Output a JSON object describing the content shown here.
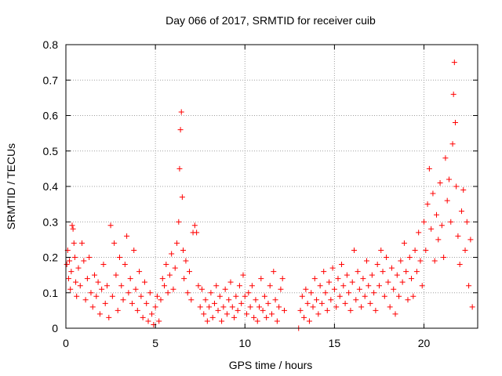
{
  "chart_data": {
    "type": "scatter",
    "title": "Day 066 of 2017, SRMTID for receiver cuib",
    "xlabel": "GPS time / hours",
    "ylabel": "SRMTID / TECUs",
    "xlim": [
      0,
      23
    ],
    "ylim": [
      0,
      0.8
    ],
    "xticks": [
      0,
      5,
      10,
      15,
      20
    ],
    "yticks": [
      0,
      0.1,
      0.2,
      0.3,
      0.4,
      0.5,
      0.6,
      0.7,
      0.8
    ],
    "xtick_labels": [
      "0",
      "5",
      "10",
      "15",
      "20"
    ],
    "ytick_labels": [
      "0",
      "0.1",
      "0.2",
      "0.3",
      "0.4",
      "0.5",
      "0.6",
      "0.7",
      "0.8"
    ],
    "grid": true,
    "marker": "+",
    "color": "#ff0000",
    "series": [
      {
        "name": "SRMTID",
        "points": [
          [
            0.05,
            0.18
          ],
          [
            0.1,
            0.22
          ],
          [
            0.15,
            0.14
          ],
          [
            0.2,
            0.19
          ],
          [
            0.25,
            0.11
          ],
          [
            0.3,
            0.16
          ],
          [
            0.35,
            0.29
          ],
          [
            0.4,
            0.28
          ],
          [
            0.45,
            0.24
          ],
          [
            0.5,
            0.2
          ],
          [
            0.55,
            0.13
          ],
          [
            0.6,
            0.09
          ],
          [
            0.7,
            0.17
          ],
          [
            0.8,
            0.12
          ],
          [
            0.9,
            0.24
          ],
          [
            1.0,
            0.19
          ],
          [
            1.1,
            0.08
          ],
          [
            1.2,
            0.14
          ],
          [
            1.3,
            0.2
          ],
          [
            1.4,
            0.1
          ],
          [
            1.5,
            0.06
          ],
          [
            1.6,
            0.15
          ],
          [
            1.7,
            0.09
          ],
          [
            1.8,
            0.13
          ],
          [
            1.9,
            0.04
          ],
          [
            2.0,
            0.11
          ],
          [
            2.1,
            0.18
          ],
          [
            2.2,
            0.07
          ],
          [
            2.3,
            0.12
          ],
          [
            2.4,
            0.03
          ],
          [
            2.5,
            0.29
          ],
          [
            2.6,
            0.09
          ],
          [
            2.7,
            0.24
          ],
          [
            2.8,
            0.15
          ],
          [
            2.9,
            0.05
          ],
          [
            3.0,
            0.2
          ],
          [
            3.1,
            0.12
          ],
          [
            3.2,
            0.08
          ],
          [
            3.3,
            0.18
          ],
          [
            3.4,
            0.26
          ],
          [
            3.5,
            0.1
          ],
          [
            3.6,
            0.14
          ],
          [
            3.7,
            0.07
          ],
          [
            3.8,
            0.22
          ],
          [
            3.9,
            0.11
          ],
          [
            4.0,
            0.05
          ],
          [
            4.1,
            0.16
          ],
          [
            4.2,
            0.09
          ],
          [
            4.3,
            0.03
          ],
          [
            4.4,
            0.13
          ],
          [
            4.5,
            0.07
          ],
          [
            4.6,
            0.02
          ],
          [
            4.7,
            0.1
          ],
          [
            4.8,
            0.04
          ],
          [
            4.9,
            0.01
          ],
          [
            5.0,
            0.06
          ],
          [
            5.1,
            0.09
          ],
          [
            5.2,
            0.02
          ],
          [
            5.3,
            0.08
          ],
          [
            5.4,
            0.14
          ],
          [
            5.5,
            0.12
          ],
          [
            5.6,
            0.18
          ],
          [
            5.7,
            0.1
          ],
          [
            5.8,
            0.15
          ],
          [
            5.9,
            0.21
          ],
          [
            6.0,
            0.11
          ],
          [
            6.1,
            0.17
          ],
          [
            6.2,
            0.24
          ],
          [
            6.3,
            0.3
          ],
          [
            6.35,
            0.45
          ],
          [
            6.4,
            0.56
          ],
          [
            6.45,
            0.61
          ],
          [
            6.5,
            0.37
          ],
          [
            6.55,
            0.22
          ],
          [
            6.6,
            0.14
          ],
          [
            6.7,
            0.19
          ],
          [
            6.8,
            0.1
          ],
          [
            6.9,
            0.16
          ],
          [
            7.0,
            0.08
          ],
          [
            7.1,
            0.27
          ],
          [
            7.2,
            0.29
          ],
          [
            7.3,
            0.27
          ],
          [
            7.4,
            0.12
          ],
          [
            7.5,
            0.06
          ],
          [
            7.6,
            0.11
          ],
          [
            7.7,
            0.04
          ],
          [
            7.8,
            0.08
          ],
          [
            7.9,
            0.02
          ],
          [
            8.0,
            0.06
          ],
          [
            8.1,
            0.1
          ],
          [
            8.2,
            0.03
          ],
          [
            8.3,
            0.07
          ],
          [
            8.4,
            0.12
          ],
          [
            8.5,
            0.05
          ],
          [
            8.6,
            0.09
          ],
          [
            8.7,
            0.02
          ],
          [
            8.8,
            0.06
          ],
          [
            8.9,
            0.11
          ],
          [
            9.0,
            0.04
          ],
          [
            9.1,
            0.08
          ],
          [
            9.2,
            0.13
          ],
          [
            9.3,
            0.06
          ],
          [
            9.4,
            0.03
          ],
          [
            9.5,
            0.09
          ],
          [
            9.6,
            0.05
          ],
          [
            9.7,
            0.12
          ],
          [
            9.8,
            0.07
          ],
          [
            9.9,
            0.15
          ],
          [
            10.0,
            0.09
          ],
          [
            10.1,
            0.04
          ],
          [
            10.2,
            0.1
          ],
          [
            10.3,
            0.06
          ],
          [
            10.4,
            0.12
          ],
          [
            10.5,
            0.03
          ],
          [
            10.6,
            0.08
          ],
          [
            10.7,
            0.02
          ],
          [
            10.8,
            0.06
          ],
          [
            10.9,
            0.14
          ],
          [
            11.0,
            0.05
          ],
          [
            11.1,
            0.09
          ],
          [
            11.2,
            0.03
          ],
          [
            11.3,
            0.07
          ],
          [
            11.4,
            0.12
          ],
          [
            11.5,
            0.04
          ],
          [
            11.6,
            0.16
          ],
          [
            11.7,
            0.08
          ],
          [
            11.8,
            0.02
          ],
          [
            11.9,
            0.06
          ],
          [
            12.0,
            0.11
          ],
          [
            12.1,
            0.14
          ],
          [
            12.2,
            0.05
          ],
          [
            13.0,
            0.0
          ],
          [
            13.1,
            0.05
          ],
          [
            13.2,
            0.09
          ],
          [
            13.3,
            0.03
          ],
          [
            13.4,
            0.11
          ],
          [
            13.5,
            0.07
          ],
          [
            13.6,
            0.02
          ],
          [
            13.7,
            0.1
          ],
          [
            13.8,
            0.06
          ],
          [
            13.9,
            0.14
          ],
          [
            14.0,
            0.08
          ],
          [
            14.1,
            0.04
          ],
          [
            14.2,
            0.12
          ],
          [
            14.3,
            0.07
          ],
          [
            14.4,
            0.16
          ],
          [
            14.5,
            0.1
          ],
          [
            14.6,
            0.05
          ],
          [
            14.7,
            0.13
          ],
          [
            14.8,
            0.08
          ],
          [
            14.9,
            0.17
          ],
          [
            15.0,
            0.11
          ],
          [
            15.1,
            0.06
          ],
          [
            15.2,
            0.14
          ],
          [
            15.3,
            0.09
          ],
          [
            15.4,
            0.18
          ],
          [
            15.5,
            0.12
          ],
          [
            15.6,
            0.07
          ],
          [
            15.7,
            0.15
          ],
          [
            15.8,
            0.1
          ],
          [
            15.9,
            0.05
          ],
          [
            16.0,
            0.13
          ],
          [
            16.1,
            0.22
          ],
          [
            16.2,
            0.08
          ],
          [
            16.3,
            0.16
          ],
          [
            16.4,
            0.11
          ],
          [
            16.5,
            0.06
          ],
          [
            16.6,
            0.14
          ],
          [
            16.7,
            0.09
          ],
          [
            16.8,
            0.19
          ],
          [
            16.9,
            0.12
          ],
          [
            17.0,
            0.07
          ],
          [
            17.1,
            0.15
          ],
          [
            17.2,
            0.1
          ],
          [
            17.3,
            0.05
          ],
          [
            17.4,
            0.18
          ],
          [
            17.5,
            0.12
          ],
          [
            17.6,
            0.22
          ],
          [
            17.7,
            0.16
          ],
          [
            17.8,
            0.09
          ],
          [
            17.9,
            0.2
          ],
          [
            18.0,
            0.13
          ],
          [
            18.1,
            0.06
          ],
          [
            18.2,
            0.17
          ],
          [
            18.3,
            0.11
          ],
          [
            18.4,
            0.04
          ],
          [
            18.5,
            0.15
          ],
          [
            18.6,
            0.09
          ],
          [
            18.7,
            0.19
          ],
          [
            18.8,
            0.13
          ],
          [
            18.9,
            0.24
          ],
          [
            19.0,
            0.16
          ],
          [
            19.1,
            0.08
          ],
          [
            19.2,
            0.2
          ],
          [
            19.3,
            0.14
          ],
          [
            19.4,
            0.09
          ],
          [
            19.5,
            0.22
          ],
          [
            19.6,
            0.16
          ],
          [
            19.7,
            0.27
          ],
          [
            19.8,
            0.19
          ],
          [
            19.9,
            0.12
          ],
          [
            20.0,
            0.3
          ],
          [
            20.1,
            0.22
          ],
          [
            20.2,
            0.35
          ],
          [
            20.3,
            0.45
          ],
          [
            20.4,
            0.28
          ],
          [
            20.5,
            0.38
          ],
          [
            20.6,
            0.19
          ],
          [
            20.7,
            0.32
          ],
          [
            20.8,
            0.25
          ],
          [
            20.9,
            0.41
          ],
          [
            21.0,
            0.29
          ],
          [
            21.1,
            0.2
          ],
          [
            21.2,
            0.48
          ],
          [
            21.3,
            0.36
          ],
          [
            21.4,
            0.42
          ],
          [
            21.5,
            0.3
          ],
          [
            21.6,
            0.52
          ],
          [
            21.65,
            0.66
          ],
          [
            21.7,
            0.75
          ],
          [
            21.75,
            0.58
          ],
          [
            21.8,
            0.4
          ],
          [
            21.9,
            0.26
          ],
          [
            22.0,
            0.18
          ],
          [
            22.1,
            0.33
          ],
          [
            22.2,
            0.39
          ],
          [
            22.3,
            0.22
          ],
          [
            22.4,
            0.3
          ],
          [
            22.5,
            0.12
          ],
          [
            22.6,
            0.25
          ],
          [
            22.7,
            0.06
          ]
        ]
      }
    ]
  }
}
